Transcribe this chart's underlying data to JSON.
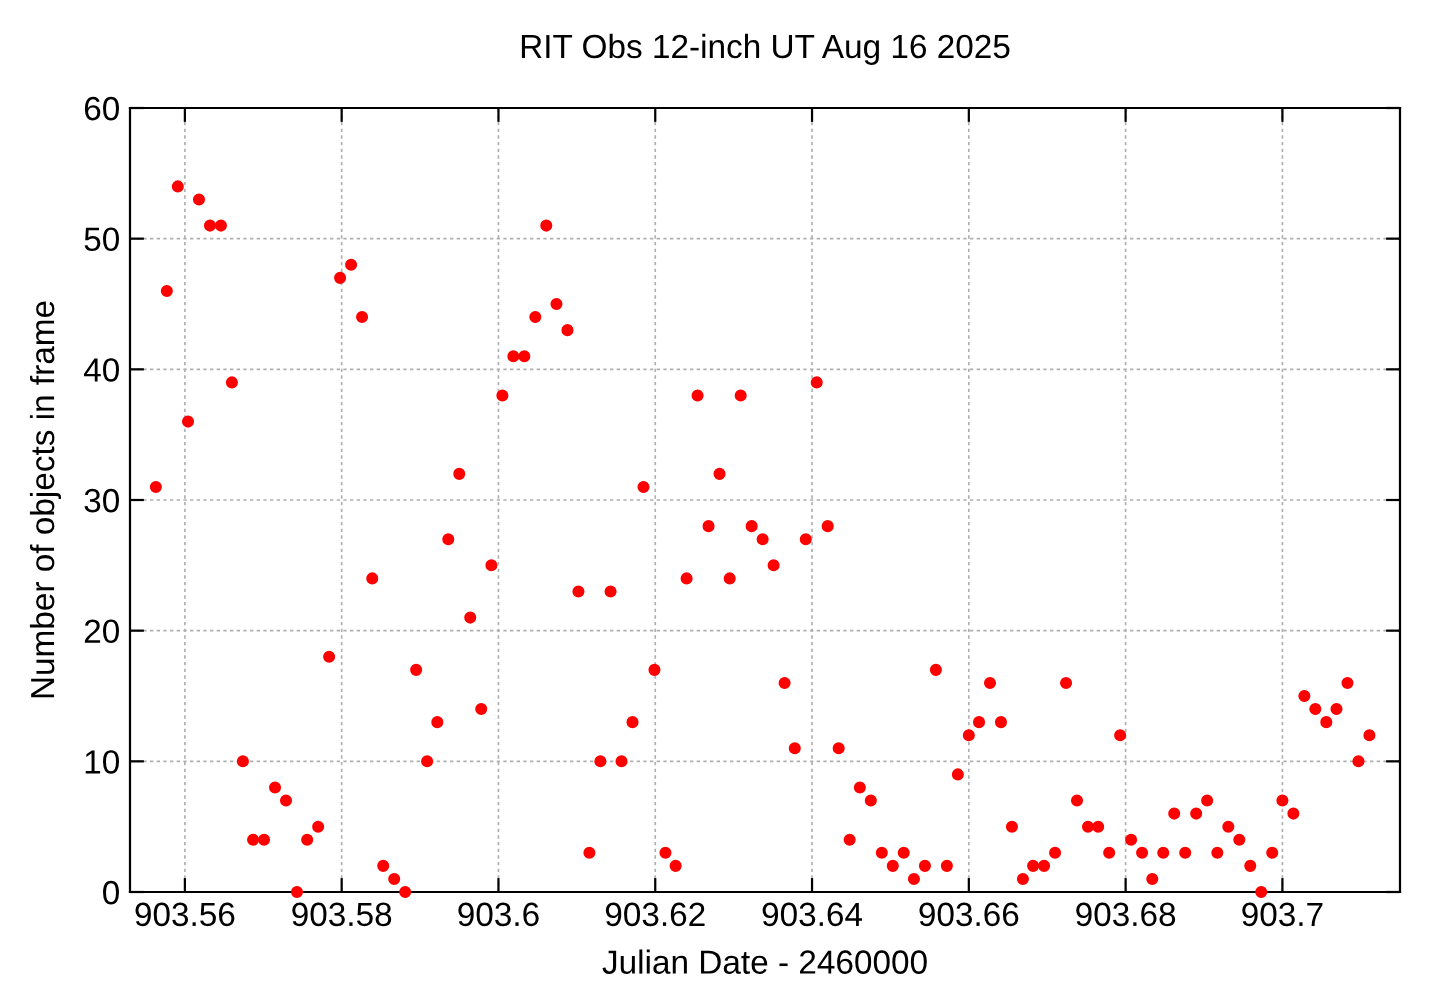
{
  "chart_data": {
    "type": "scatter",
    "title": "RIT Obs 12-inch UT Aug 16 2025",
    "xlabel": "Julian Date - 2460000",
    "ylabel": "Number of objects in frame",
    "x": [
      903.5563,
      903.5577,
      903.5591,
      903.5604,
      903.5618,
      903.5632,
      903.5646,
      903.566,
      903.5674,
      903.5687,
      903.5701,
      903.5715,
      903.5729,
      903.5743,
      903.5756,
      903.577,
      903.5784,
      903.5798,
      903.5812,
      903.5826,
      903.5839,
      903.5853,
      903.5867,
      903.5881,
      903.5895,
      903.5909,
      903.5922,
      903.5936,
      903.595,
      903.5964,
      903.5978,
      903.5991,
      903.6005,
      903.6019,
      903.6033,
      903.6047,
      903.6061,
      903.6074,
      903.6088,
      903.6102,
      903.6116,
      903.613,
      903.6143,
      903.6157,
      903.6171,
      903.6185,
      903.6199,
      903.6213,
      903.6226,
      903.624,
      903.6254,
      903.6268,
      903.6282,
      903.6295,
      903.6309,
      903.6323,
      903.6337,
      903.6351,
      903.6365,
      903.6378,
      903.6392,
      903.6406,
      903.642,
      903.6434,
      903.6448,
      903.6461,
      903.6475,
      903.6489,
      903.6503,
      903.6517,
      903.653,
      903.6544,
      903.6558,
      903.6572,
      903.6586,
      903.66,
      903.6613,
      903.6627,
      903.6641,
      903.6655,
      903.6669,
      903.6682,
      903.6696,
      903.671,
      903.6724,
      903.6738,
      903.6752,
      903.6765,
      903.6779,
      903.6793,
      903.6807,
      903.6821,
      903.6834,
      903.6848,
      903.6862,
      903.6876,
      903.689,
      903.6904,
      903.6917,
      903.6931,
      903.6945,
      903.6959,
      903.6973,
      903.6987,
      903.7,
      903.7014,
      903.7028,
      903.7042,
      903.7056,
      903.7069,
      903.7083,
      903.7097,
      903.7111
    ],
    "series": [
      {
        "color": "#ff0000",
        "values": [
          31,
          46,
          54,
          36,
          53,
          51,
          51,
          39,
          10,
          4,
          4,
          8,
          7,
          0,
          4,
          5,
          18,
          47,
          48,
          44,
          24,
          2,
          1,
          0,
          17,
          10,
          13,
          27,
          32,
          21,
          14,
          25,
          38,
          41,
          41,
          44,
          51,
          45,
          43,
          23,
          3,
          10,
          23,
          10,
          13,
          31,
          17,
          3,
          2,
          24,
          38,
          28,
          32,
          24,
          38,
          28,
          27,
          25,
          16,
          11,
          27,
          39,
          28,
          11,
          4,
          8,
          7,
          3,
          2,
          3,
          1,
          2,
          17,
          2,
          9,
          12,
          13,
          16,
          13,
          5,
          1,
          2,
          2,
          3,
          16,
          7,
          5,
          5,
          3,
          12,
          4,
          3,
          1,
          3,
          6,
          3,
          6,
          7,
          3,
          5,
          4,
          2,
          0,
          3,
          7,
          6,
          15,
          14,
          13,
          14,
          16,
          10,
          12
        ]
      }
    ],
    "xlim": [
      903.553,
      903.715
    ],
    "xticks": [
      903.56,
      903.58,
      903.6,
      903.62,
      903.64,
      903.66,
      903.68,
      903.7
    ],
    "ylim": [
      0,
      60
    ],
    "yticks": [
      0,
      10,
      20,
      30,
      40,
      50,
      60
    ],
    "grid": true,
    "marker": "circle",
    "legend": false
  }
}
